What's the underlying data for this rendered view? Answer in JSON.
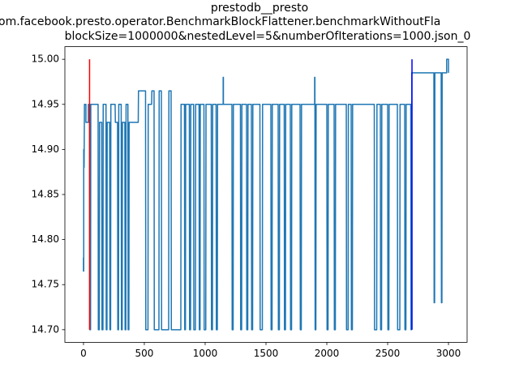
{
  "chart_data": {
    "type": "line",
    "title_lines": [
      "prestodb__presto",
      "om.facebook.presto.operator.BenchmarkBlockFlattener.benchmarkWithoutFla",
      "blockSize=1000000&nestedLevel=5&numberOfIterations=1000.json_0"
    ],
    "xlim": [
      -153,
      3153
    ],
    "ylim": [
      14.686,
      15.014
    ],
    "xticks": [
      0,
      500,
      1000,
      1500,
      2000,
      2500,
      3000
    ],
    "yticks": [
      {
        "value": 14.7,
        "label": "14.70"
      },
      {
        "value": 14.75,
        "label": "14.75"
      },
      {
        "value": 14.8,
        "label": "14.80"
      },
      {
        "value": 14.85,
        "label": "14.85"
      },
      {
        "value": 14.9,
        "label": "14.90"
      },
      {
        "value": 14.95,
        "label": "14.95"
      },
      {
        "value": 15.0,
        "label": "15.00"
      }
    ],
    "grid": false,
    "series": [
      {
        "color": "#1f77b4",
        "x": [
          0,
          0,
          2,
          2,
          5,
          5,
          8,
          20,
          20,
          40,
          40,
          50,
          52,
          58,
          60,
          120,
          122,
          130,
          132,
          150,
          152,
          160,
          162,
          185,
          187,
          193,
          195,
          215,
          217,
          223,
          225,
          260,
          262,
          280,
          282,
          288,
          290,
          310,
          312,
          318,
          320,
          340,
          342,
          348,
          350,
          365,
          367,
          373,
          375,
          450,
          452,
          510,
          512,
          530,
          532,
          560,
          562,
          580,
          582,
          620,
          622,
          640,
          642,
          700,
          702,
          720,
          722,
          800,
          802,
          830,
          832,
          838,
          840,
          870,
          872,
          880,
          882,
          905,
          907,
          920,
          922,
          950,
          952,
          958,
          960,
          990,
          992,
          1005,
          1007,
          1050,
          1052,
          1060,
          1062,
          1090,
          1092,
          1100,
          1102,
          1148,
          1148,
          1150,
          1150,
          1220,
          1222,
          1230,
          1232,
          1290,
          1292,
          1300,
          1302,
          1340,
          1342,
          1350,
          1352,
          1380,
          1382,
          1390,
          1392,
          1450,
          1452,
          1470,
          1472,
          1540,
          1542,
          1550,
          1552,
          1600,
          1602,
          1610,
          1612,
          1650,
          1652,
          1660,
          1662,
          1700,
          1702,
          1710,
          1712,
          1780,
          1782,
          1790,
          1792,
          1900,
          1900,
          1902,
          1904,
          1910,
          1912,
          2000,
          2002,
          2010,
          2012,
          2060,
          2062,
          2070,
          2072,
          2160,
          2162,
          2175,
          2177,
          2200,
          2202,
          2210,
          2212,
          2390,
          2392,
          2410,
          2412,
          2440,
          2442,
          2450,
          2452,
          2500,
          2502,
          2510,
          2512,
          2580,
          2582,
          2600,
          2602,
          2640,
          2642,
          2650,
          2652,
          2690,
          2692,
          2696,
          2698,
          2880,
          2882,
          2886,
          2888,
          2940,
          2942,
          2946,
          2948,
          2985,
          2985,
          3000,
          3000
        ],
        "values": [
          14.78,
          14.765,
          14.765,
          14.9,
          14.9,
          14.88,
          14.95,
          14.95,
          14.93,
          14.93,
          14.95,
          14.95,
          14.7,
          14.7,
          14.95,
          14.95,
          14.7,
          14.7,
          14.93,
          14.93,
          14.7,
          14.7,
          14.95,
          14.95,
          14.7,
          14.7,
          14.93,
          14.93,
          14.7,
          14.7,
          14.95,
          14.95,
          14.93,
          14.93,
          14.7,
          14.7,
          14.95,
          14.95,
          14.7,
          14.7,
          14.93,
          14.93,
          14.7,
          14.7,
          14.95,
          14.95,
          14.7,
          14.7,
          14.93,
          14.93,
          14.965,
          14.965,
          14.7,
          14.7,
          14.95,
          14.95,
          14.965,
          14.965,
          14.7,
          14.7,
          14.965,
          14.965,
          14.7,
          14.7,
          14.965,
          14.965,
          14.7,
          14.7,
          14.95,
          14.95,
          14.7,
          14.7,
          14.95,
          14.95,
          14.7,
          14.7,
          14.95,
          14.95,
          14.7,
          14.7,
          14.95,
          14.95,
          14.7,
          14.7,
          14.95,
          14.95,
          14.7,
          14.7,
          14.95,
          14.95,
          14.7,
          14.7,
          14.95,
          14.95,
          14.7,
          14.7,
          14.95,
          14.95,
          14.98,
          14.98,
          14.95,
          14.95,
          14.7,
          14.7,
          14.95,
          14.95,
          14.7,
          14.7,
          14.95,
          14.95,
          14.7,
          14.7,
          14.95,
          14.95,
          14.7,
          14.7,
          14.95,
          14.95,
          14.7,
          14.7,
          14.95,
          14.95,
          14.7,
          14.7,
          14.95,
          14.95,
          14.7,
          14.7,
          14.95,
          14.95,
          14.7,
          14.7,
          14.95,
          14.95,
          14.7,
          14.7,
          14.95,
          14.95,
          14.7,
          14.7,
          14.95,
          14.95,
          14.98,
          14.98,
          14.7,
          14.7,
          14.95,
          14.95,
          14.7,
          14.7,
          14.95,
          14.95,
          14.7,
          14.7,
          14.95,
          14.95,
          14.7,
          14.7,
          14.95,
          14.95,
          14.7,
          14.7,
          14.95,
          14.95,
          14.7,
          14.7,
          14.95,
          14.95,
          14.7,
          14.7,
          14.95,
          14.95,
          14.7,
          14.7,
          14.95,
          14.95,
          14.7,
          14.7,
          14.95,
          14.95,
          14.7,
          14.7,
          14.95,
          14.95,
          14.7,
          14.7,
          14.985,
          14.985,
          14.73,
          14.73,
          14.985,
          14.985,
          14.73,
          14.73,
          14.985,
          14.985,
          15.0,
          15.0,
          14.985
        ]
      }
    ],
    "vertical_lines": [
      {
        "x": 50,
        "ymin": 14.7,
        "ymax": 15.0,
        "color": "#ff0000"
      },
      {
        "x": 2700,
        "ymin": 14.7,
        "ymax": 15.0,
        "color": "#0000ff"
      }
    ]
  }
}
